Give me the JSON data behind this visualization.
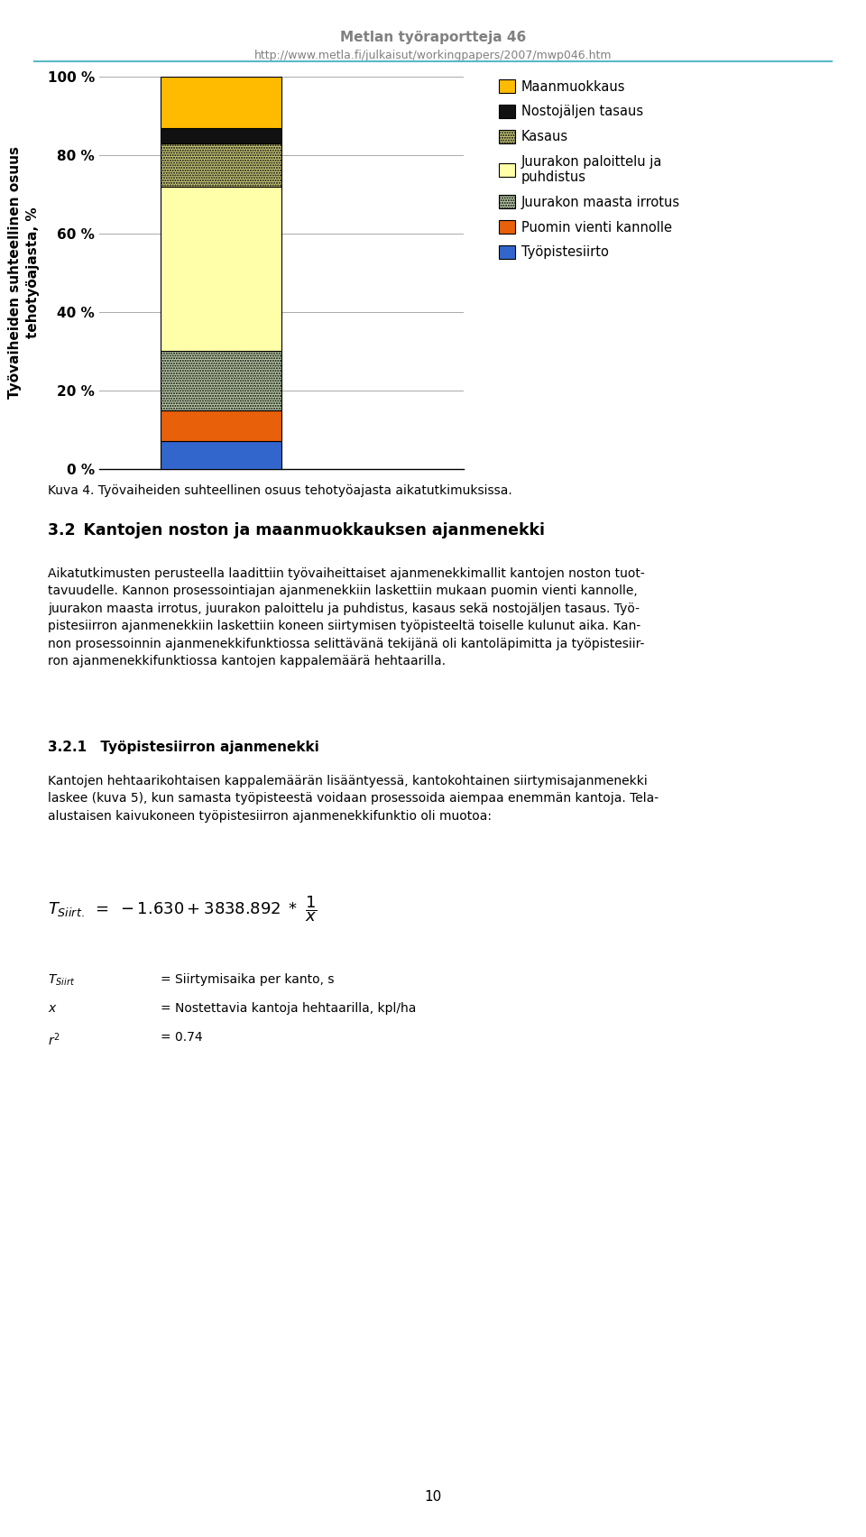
{
  "header_title": "Metlan työraportteja 46",
  "header_url": "http://www.metla.fi/julkaisut/workingpapers/2007/mwp046.htm",
  "segments": [
    {
      "label": "Työpistesiirto",
      "value": 7,
      "color": "#3366CC",
      "hatch": null
    },
    {
      "label": "Puomin vienti kannolle",
      "value": 8,
      "color": "#E8600A",
      "hatch": null
    },
    {
      "label": "Juurakon maasta irrotus",
      "value": 15,
      "color": "#BBCCA8",
      "hatch": "......"
    },
    {
      "label": "Juurakon paloittelu ja\npuhdistus",
      "value": 42,
      "color": "#FFFFAA",
      "hatch": null
    },
    {
      "label": "Kasaus",
      "value": 11,
      "color": "#C8C87A",
      "hatch": "......"
    },
    {
      "label": "Nostojäljen tasaus",
      "value": 4,
      "color": "#111111",
      "hatch": null
    },
    {
      "label": "Maanmuokkaus",
      "value": 13,
      "color": "#FFBB00",
      "hatch": null
    }
  ],
  "ylabel_line1": "Työvaiheiden suhteellinen osuus",
  "ylabel_line2": "tehotyöajasta, %",
  "yticks": [
    0,
    20,
    40,
    60,
    80,
    100
  ],
  "ytick_labels": [
    "0 %",
    "20 %",
    "40 %",
    "60 %",
    "80 %",
    "100 %"
  ],
  "figure_caption": "Kuva 4. Työvaiheiden suhteellinen osuus tehotyöajasta aikatutkimuksissa.",
  "section_title": "3.2 Kantojen noston ja maanmuokkauksen ajanmenekki",
  "para1_lines": [
    "Aikatutkimusten perusteella laadittiin työvaiheittaiset ajanmenekkimallit kantojen noston tuot-",
    "tavuudelle. Kannon prosessointiajan ajanmenekkiin laskettiin mukaan puomin vienti kannolle,",
    "juurakon maasta irrotus, juurakon paloittelu ja puhdistus, kasaus sekä nostojäljen tasaus. Työ-",
    "pistesiirron ajanmenekkiin laskettiin koneen siirtymisen työpisteeltä toiselle kulunut aika. Kan-",
    "non prosessoinnin ajanmenekkifunktiossa selittävänä tekijänä oli kantoläpimitta ja työpistesiir-",
    "ron ajanmenekkifunktiossa kantojen kappalemäärä hehtaarilla."
  ],
  "subsection_title": "3.2.1 Työpistesiirron ajanmenekki",
  "para2_lines": [
    "Kantojen hehtaarikohtaisen kappalemäärän lisääntyessä, kantokohtainen siirtymisajanmenekki",
    "laskee (kuva 5), kun samasta työpisteestä voidaan prosessoida aiempaa enemmän kantoja. Tela-",
    "alustaisen kaivukoneen työpistesiirron ajanmenekkifunktio oli muotoa:"
  ],
  "var_T_def": "= Siirtymisaika per kanto, s",
  "var_x_def": "= Nostettavia kantoja hehtaarilla, kpl/ha",
  "var_r2_def": "= 0.74",
  "page_number": "10",
  "background_color": "#FFFFFF",
  "header_color": "#808080",
  "text_color": "#000000",
  "teal_line_color": "#5BB8C8"
}
